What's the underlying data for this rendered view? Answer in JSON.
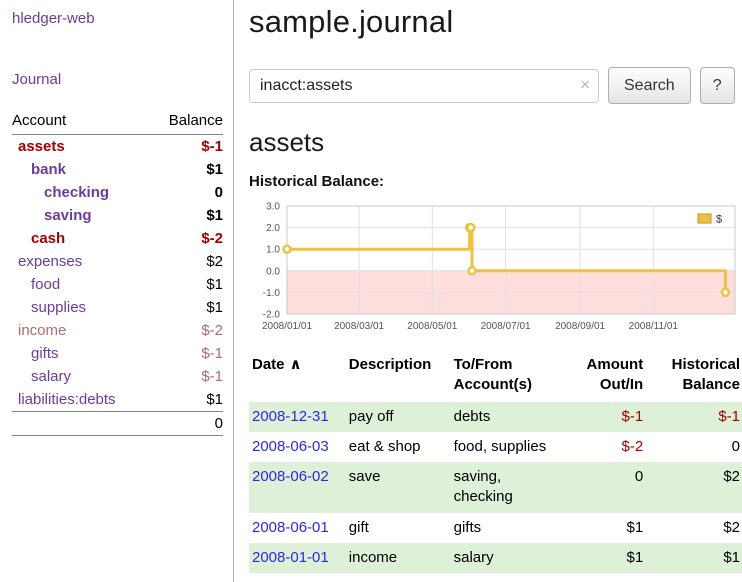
{
  "sidebar": {
    "app_title": "hledger-web",
    "journal_link": "Journal",
    "headers": [
      "Account",
      "Balance"
    ],
    "accounts": [
      {
        "label": "assets",
        "balance": "$-1",
        "indent": 0,
        "name_class": "bold neg",
        "balance_class": "bold neg"
      },
      {
        "label": "bank",
        "balance": "$1",
        "indent": 1,
        "name_class": "bold",
        "balance_class": "bold"
      },
      {
        "label": "checking",
        "balance": "0",
        "indent": 2,
        "name_class": "bold",
        "balance_class": "bold"
      },
      {
        "label": "saving",
        "balance": "$1",
        "indent": 2,
        "name_class": "bold",
        "balance_class": "bold"
      },
      {
        "label": "cash",
        "balance": "$-2",
        "indent": 1,
        "name_class": "bold neg",
        "balance_class": "bold neg"
      },
      {
        "label": "expenses",
        "balance": "$2",
        "indent": 0,
        "name_class": "",
        "balance_class": ""
      },
      {
        "label": "food",
        "balance": "$1",
        "indent": 1,
        "name_class": "",
        "balance_class": ""
      },
      {
        "label": "supplies",
        "balance": "$1",
        "indent": 1,
        "name_class": "",
        "balance_class": ""
      },
      {
        "label": "income",
        "balance": "$-2",
        "indent": 0,
        "name_class": "neg-soft",
        "balance_class": "neg-soft"
      },
      {
        "label": "gifts",
        "balance": "$-1",
        "indent": 1,
        "name_class": "",
        "balance_class": "neg-soft"
      },
      {
        "label": "salary",
        "balance": "$-1",
        "indent": 1,
        "name_class": "",
        "balance_class": "neg-soft"
      },
      {
        "label": "liabilities:debts",
        "balance": "$1",
        "indent": 0,
        "name_class": "",
        "balance_class": ""
      }
    ],
    "total": "0"
  },
  "main": {
    "title": "sample.journal",
    "search": {
      "value": "inacct:assets",
      "clear_icon": "×",
      "button_label": "Search",
      "help_label": "?"
    },
    "account_heading": "assets",
    "chart_title": "Historical Balance:"
  },
  "chart_data": {
    "type": "line",
    "step": true,
    "title": "Historical Balance:",
    "series": [
      {
        "name": "$",
        "color": "#edc240",
        "points": [
          {
            "date": "2008-01-01",
            "value": 1
          },
          {
            "date": "2008-06-01",
            "value": 2
          },
          {
            "date": "2008-06-02",
            "value": 2
          },
          {
            "date": "2008-06-03",
            "value": 0
          },
          {
            "date": "2008-12-31",
            "value": -1
          }
        ]
      }
    ],
    "ylim": [
      -2,
      3
    ],
    "yticks": [
      3,
      2,
      1,
      0,
      -1,
      -2
    ],
    "xtick_labels": [
      "2008/01/01",
      "2008/03/01",
      "2008/05/01",
      "2008/07/01",
      "2008/09/01",
      "2008/11/01"
    ],
    "xlim": [
      "2008-01-01",
      "2009-01-08"
    ],
    "negative_region_fill": "#ffdede",
    "grid": true,
    "legend_position": "top-right"
  },
  "register": {
    "headers": [
      "Date",
      "Description",
      "To/From Account(s)",
      "Amount Out/In",
      "Historical Balance"
    ],
    "sort_indicator": "∧",
    "rows": [
      {
        "date": "2008-12-31",
        "description": "pay off",
        "accounts": "debts",
        "amount": "$-1",
        "balance": "$-1",
        "amount_negative": true,
        "balance_negative": true,
        "highlight": true
      },
      {
        "date": "2008-06-03",
        "description": "eat & shop",
        "accounts": "food, supplies",
        "amount": "$-2",
        "balance": "0",
        "amount_negative": true,
        "balance_negative": false,
        "highlight": false
      },
      {
        "date": "2008-06-02",
        "description": "save",
        "accounts": "saving, checking",
        "amount": "0",
        "balance": "$2",
        "amount_negative": false,
        "balance_negative": false,
        "highlight": true
      },
      {
        "date": "2008-06-01",
        "description": "gift",
        "accounts": "gifts",
        "amount": "$1",
        "balance": "$2",
        "amount_negative": false,
        "balance_negative": false,
        "highlight": false
      },
      {
        "date": "2008-01-01",
        "description": "income",
        "accounts": "salary",
        "amount": "$1",
        "balance": "$1",
        "amount_negative": false,
        "balance_negative": false,
        "highlight": true
      }
    ]
  },
  "colors": {
    "link_purple": "#6a3d9a",
    "date_blue": "#2a2ae0",
    "negative_red": "#a40000",
    "negative_soft_red": "#b36b6b",
    "row_highlight_green": "#dff0d8",
    "chart_series_gold": "#edc240"
  }
}
